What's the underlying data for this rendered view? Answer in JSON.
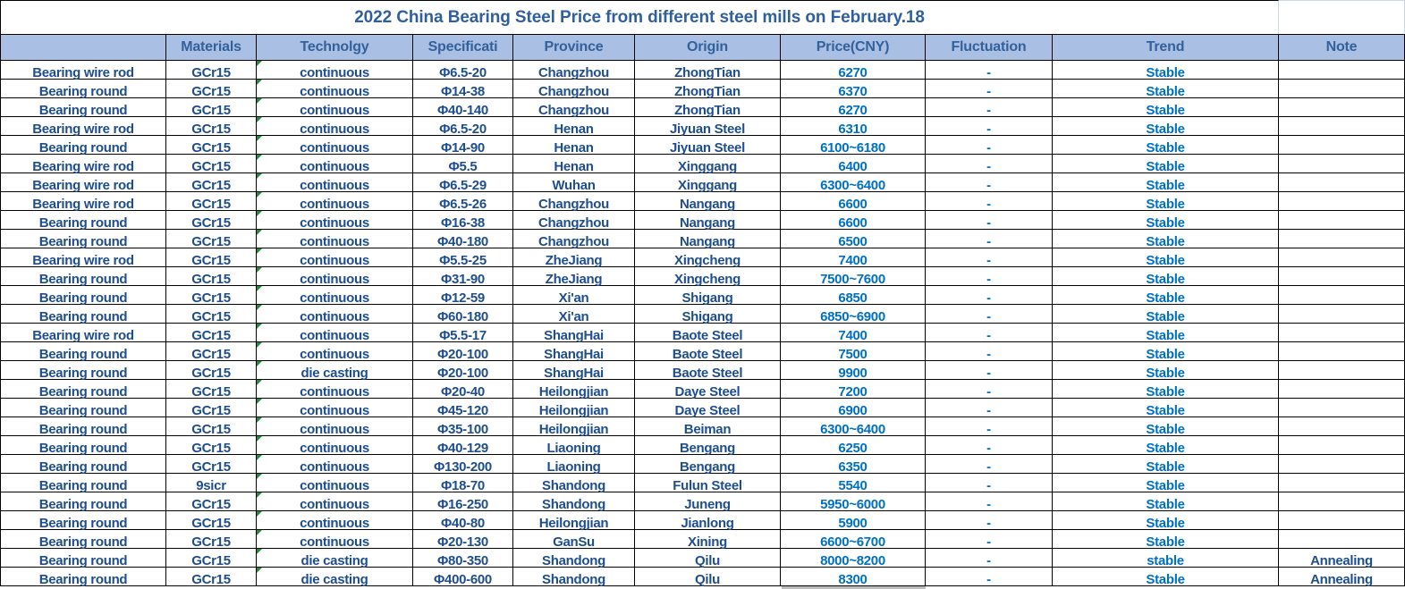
{
  "title": "2022 China Bearing Steel Price from different steel mills on  February.18",
  "colors": {
    "header_bg": "#a9bfe3",
    "header_text": "#33619c",
    "title_text": "#2f5f9e",
    "dark_text": "#1f4e8c",
    "bright_text": "#0070c0",
    "grid_border": "#000000",
    "light_border": "#ccd9ec",
    "error_indicator_green": "#1e8e3e",
    "pending_cell_gray": "#bdbdbd"
  },
  "table": {
    "columns": [
      {
        "key": "product",
        "label": ""
      },
      {
        "key": "materials",
        "label": "Materials"
      },
      {
        "key": "technology",
        "label": "Technolgy"
      },
      {
        "key": "specification",
        "label": "Specificati"
      },
      {
        "key": "province",
        "label": "Province"
      },
      {
        "key": "origin",
        "label": "Origin"
      },
      {
        "key": "price",
        "label": "Price(CNY)"
      },
      {
        "key": "fluctuation",
        "label": "Fluctuation"
      },
      {
        "key": "trend",
        "label": "Trend"
      },
      {
        "key": "note",
        "label": "Note"
      }
    ],
    "rows": [
      [
        "Bearing wire rod",
        "GCr15",
        "continuous",
        "Φ6.5-20",
        "Changzhou",
        "ZhongTian",
        "6270",
        "-",
        "Stable",
        ""
      ],
      [
        "Bearing round",
        "GCr15",
        "continuous",
        "Φ14-38",
        "Changzhou",
        "ZhongTian",
        "6370",
        "-",
        "Stable",
        ""
      ],
      [
        "Bearing round",
        "GCr15",
        "continuous",
        "Φ40-140",
        "Changzhou",
        "ZhongTian",
        "6270",
        "-",
        "Stable",
        ""
      ],
      [
        "Bearing wire rod",
        "GCr15",
        "continuous",
        "Φ6.5-20",
        "Henan",
        "Jiyuan Steel",
        "6310",
        "-",
        "Stable",
        ""
      ],
      [
        "Bearing round",
        "GCr15",
        "continuous",
        "Φ14-90",
        "Henan",
        "Jiyuan Steel",
        "6100~6180",
        "-",
        "Stable",
        ""
      ],
      [
        "Bearing wire rod",
        "GCr15",
        "continuous",
        "Φ5.5",
        "Henan",
        "Xinggang",
        "6400",
        "-",
        "Stable",
        ""
      ],
      [
        "Bearing wire rod",
        "GCr15",
        "continuous",
        "Φ6.5-29",
        "Wuhan",
        "Xinggang",
        "6300~6400",
        "-",
        "Stable",
        ""
      ],
      [
        "Bearing wire rod",
        "GCr15",
        "continuous",
        "Φ6.5-26",
        "Changzhou",
        "Nangang",
        "6600",
        "-",
        "Stable",
        ""
      ],
      [
        "Bearing round",
        "GCr15",
        "continuous",
        "Φ16-38",
        "Changzhou",
        "Nangang",
        "6600",
        "-",
        "Stable",
        ""
      ],
      [
        "Bearing round",
        "GCr15",
        "continuous",
        "Φ40-180",
        "Changzhou",
        "Nangang",
        "6500",
        "-",
        "Stable",
        ""
      ],
      [
        "Bearing wire rod",
        "GCr15",
        "continuous",
        "Φ5.5-25",
        "ZheJiang",
        "Xingcheng",
        "7400",
        "-",
        "Stable",
        ""
      ],
      [
        "Bearing round",
        "GCr15",
        "continuous",
        "Φ31-90",
        "ZheJiang",
        "Xingcheng",
        "7500~7600",
        "-",
        "Stable",
        ""
      ],
      [
        "Bearing round",
        "GCr15",
        "continuous",
        "Φ12-59",
        "Xi'an",
        "Shigang",
        "6850",
        "-",
        "Stable",
        ""
      ],
      [
        "Bearing round",
        "GCr15",
        "continuous",
        "Φ60-180",
        "Xi'an",
        "Shigang",
        "6850~6900",
        "-",
        "Stable",
        ""
      ],
      [
        "Bearing wire rod",
        "GCr15",
        "continuous",
        "Φ5.5-17",
        "ShangHai",
        "Baote Steel",
        "7400",
        "-",
        "Stable",
        ""
      ],
      [
        "Bearing round",
        "GCr15",
        "continuous",
        "Φ20-100",
        "ShangHai",
        "Baote Steel",
        "7500",
        "-",
        "Stable",
        ""
      ],
      [
        "Bearing round",
        "GCr15",
        "die casting",
        "Φ20-100",
        "ShangHai",
        "Baote Steel",
        "9900",
        "-",
        "Stable",
        ""
      ],
      [
        "Bearing round",
        "GCr15",
        "continuous",
        "Φ20-40",
        "Heilongjian",
        "Daye Steel",
        "7200",
        "-",
        "Stable",
        ""
      ],
      [
        "Bearing round",
        "GCr15",
        "continuous",
        "Φ45-120",
        "Heilongjian",
        "Daye Steel",
        "6900",
        "-",
        "Stable",
        ""
      ],
      [
        "Bearing round",
        "GCr15",
        "continuous",
        "Φ35-100",
        "Heilongjian",
        "Beiman",
        "6300~6400",
        "-",
        "Stable",
        ""
      ],
      [
        "Bearing round",
        "GCr15",
        "continuous",
        "Φ40-129",
        "Liaoning",
        "Bengang",
        "6250",
        "-",
        "Stable",
        ""
      ],
      [
        "Bearing round",
        "GCr15",
        "continuous",
        "Φ130-200",
        "Liaoning",
        "Bengang",
        "6350",
        "-",
        "Stable",
        ""
      ],
      [
        "Bearing round",
        "9sicr",
        "continuous",
        "Φ18-70",
        "Shandong",
        "Fulun Steel",
        "5540",
        "-",
        "Stable",
        ""
      ],
      [
        "Bearing round",
        "GCr15",
        "continuous",
        "Φ16-250",
        "Shandong",
        "Juneng",
        "5950~6000",
        "-",
        "Stable",
        ""
      ],
      [
        "Bearing round",
        "GCr15",
        "continuous",
        "Φ40-80",
        "Heilongjian",
        "Jianlong",
        "5900",
        "-",
        "Stable",
        ""
      ],
      [
        "Bearing round",
        "GCr15",
        "continuous",
        "Φ20-130",
        "GanSu",
        "Xining",
        "6600~6700",
        "-",
        "Stable",
        ""
      ],
      [
        "Bearing round",
        "GCr15",
        "die casting",
        "Φ80-350",
        "Shandong",
        "Qilu",
        "8000~8200",
        "-",
        "stable",
        "Annealing"
      ],
      [
        "Bearing round",
        "GCr15",
        "die casting",
        "Φ400-600",
        "Shandong",
        "Qilu",
        "8300",
        "-",
        "Stable",
        "Annealing"
      ]
    ]
  }
}
